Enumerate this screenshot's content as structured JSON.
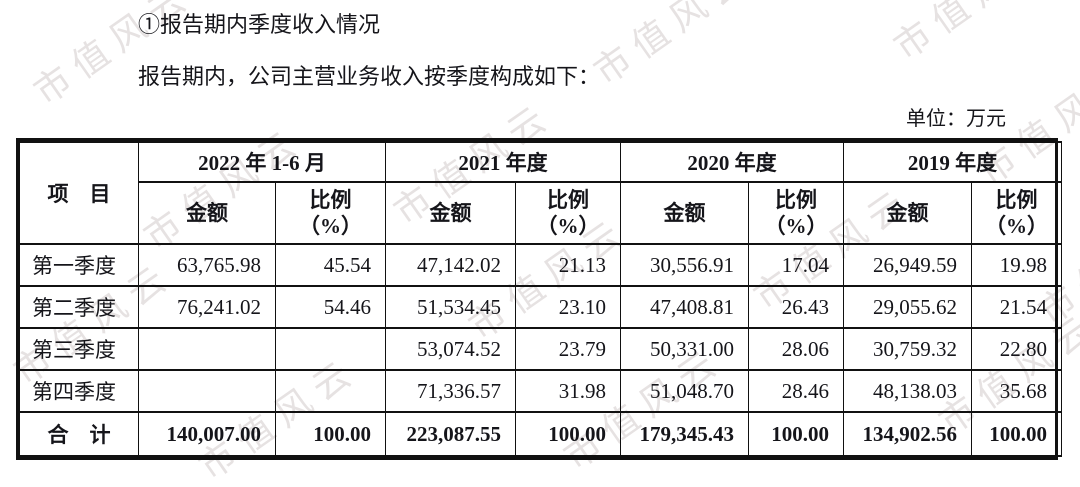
{
  "page": {
    "heading": "①报告期内季度收入情况",
    "intro": "报告期内，公司主营业务收入按季度构成如下：",
    "unit_note": "单位：万元",
    "watermark": "市值风云"
  },
  "table": {
    "item_header": "项　目",
    "amount_label": "金额",
    "ratio_line1": "比例",
    "ratio_line2": "（%）",
    "periods": [
      "2022 年 1-6 月",
      "2021 年度",
      "2020 年度",
      "2019 年度"
    ],
    "rows": [
      {
        "label": "第一季度",
        "values": [
          "63,765.98",
          "45.54",
          "47,142.02",
          "21.13",
          "30,556.91",
          "17.04",
          "26,949.59",
          "19.98"
        ]
      },
      {
        "label": "第二季度",
        "values": [
          "76,241.02",
          "54.46",
          "51,534.45",
          "23.10",
          "47,408.81",
          "26.43",
          "29,055.62",
          "21.54"
        ]
      },
      {
        "label": "第三季度",
        "values": [
          "",
          "",
          "53,074.52",
          "23.79",
          "50,331.00",
          "28.06",
          "30,759.32",
          "22.80"
        ]
      },
      {
        "label": "第四季度",
        "values": [
          "",
          "",
          "71,336.57",
          "31.98",
          "51,048.70",
          "28.46",
          "48,138.03",
          "35.68"
        ]
      },
      {
        "label": "合　计",
        "values": [
          "140,007.00",
          "100.00",
          "223,087.55",
          "100.00",
          "179,345.43",
          "100.00",
          "134,902.56",
          "100.00"
        ]
      }
    ]
  },
  "colors": {
    "text": "#15151a",
    "border": "#111111",
    "watermark": "#e6e2e2",
    "background": "#ffffff"
  }
}
